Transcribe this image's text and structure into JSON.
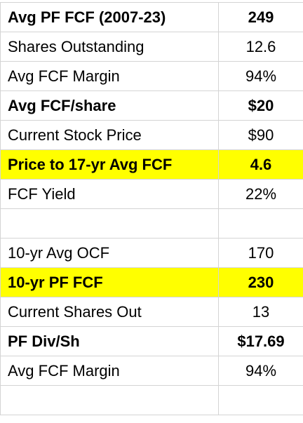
{
  "table": {
    "sections": [
      {
        "rows": [
          {
            "label": "Avg PF FCF (2007-23)",
            "value": "249",
            "bold": true,
            "highlight": false
          },
          {
            "label": "Shares Outstanding",
            "value": "12.6",
            "bold": false,
            "highlight": false
          },
          {
            "label": "Avg FCF Margin",
            "value": "94%",
            "bold": false,
            "highlight": false
          },
          {
            "label": "Avg FCF/share",
            "value": "$20",
            "bold": true,
            "highlight": false
          },
          {
            "label": "Current Stock Price",
            "value": "$90",
            "bold": false,
            "highlight": false
          },
          {
            "label": "Price to 17-yr Avg FCF",
            "value": "4.6",
            "bold": true,
            "highlight": true
          },
          {
            "label": "FCF Yield",
            "value": "22%",
            "bold": false,
            "highlight": false
          }
        ]
      },
      {
        "rows": [
          {
            "label": "10-yr Avg OCF",
            "value": "170",
            "bold": false,
            "highlight": false
          },
          {
            "label": "10-yr PF FCF",
            "value": "230",
            "bold": true,
            "highlight": true
          },
          {
            "label": "Current Shares Out",
            "value": "13",
            "bold": false,
            "highlight": false
          },
          {
            "label": "PF Div/Sh",
            "value": "$17.69",
            "bold": true,
            "highlight": false
          },
          {
            "label": "Avg FCF Margin",
            "value": "94%",
            "bold": false,
            "highlight": false
          }
        ]
      }
    ]
  }
}
